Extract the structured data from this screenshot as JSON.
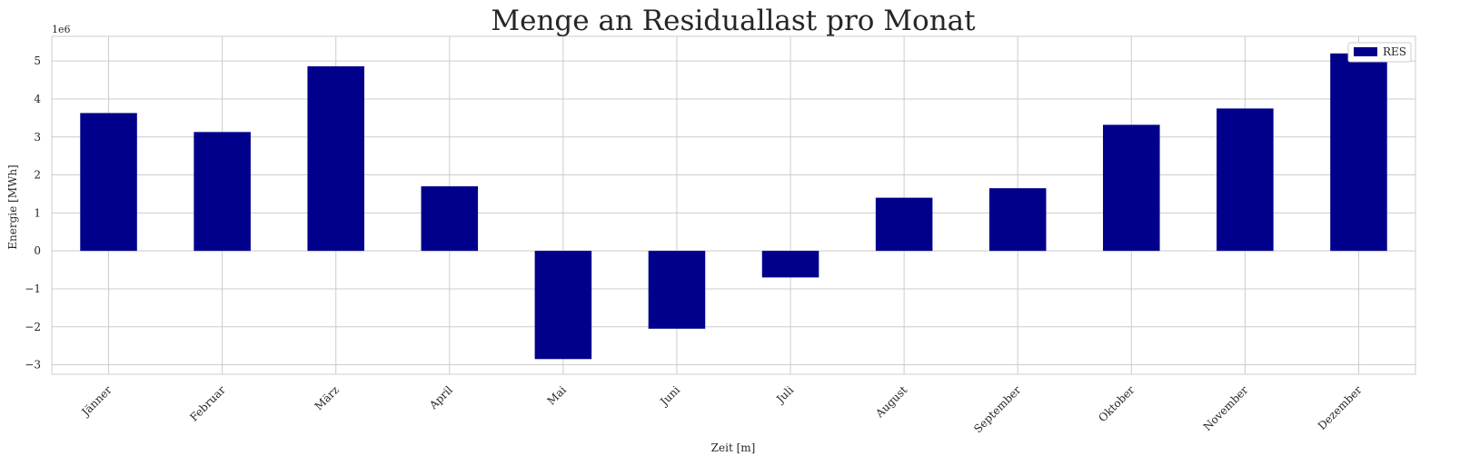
{
  "chart_data": {
    "type": "bar",
    "title": "Menge an Residuallast pro Monat",
    "xlabel": "Zeit [m]",
    "ylabel": "Energie [MWh]",
    "offset_label": "1e6",
    "categories": [
      "Jänner",
      "Februar",
      "März",
      "April",
      "Mai",
      "Juni",
      "Juli",
      "August",
      "September",
      "Oktober",
      "November",
      "Dezember"
    ],
    "series": [
      {
        "name": "RES",
        "color": "#00008b",
        "values": [
          3.63,
          3.13,
          4.86,
          1.7,
          -2.85,
          -2.05,
          -0.7,
          1.4,
          1.65,
          3.32,
          3.75,
          5.2
        ]
      }
    ],
    "ylim": [
      -3.25,
      5.65
    ],
    "yticks": [
      -3,
      -2,
      -1,
      0,
      1,
      2,
      3,
      4,
      5
    ],
    "ytick_labels": [
      "−3",
      "−2",
      "−1",
      "0",
      "1",
      "2",
      "3",
      "4",
      "5"
    ],
    "grid": true,
    "legend_position": "top-right"
  }
}
